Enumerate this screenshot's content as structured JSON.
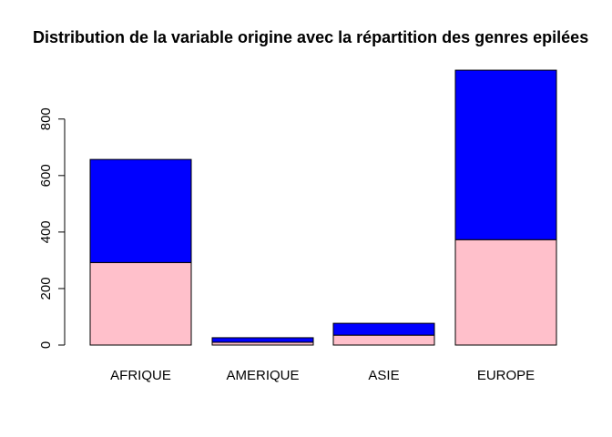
{
  "chart_data": {
    "type": "bar",
    "stacked": true,
    "title": "Distribution de la variable origine avec la répartition des genres epilées",
    "xlabel": "",
    "ylabel": "",
    "categories": [
      "AFRIQUE",
      "AMERIQUE",
      "ASIE",
      "EUROPE"
    ],
    "series": [
      {
        "color": "#ffc0cb",
        "values": [
          292,
          10,
          35,
          373
        ]
      },
      {
        "color": "#0000ff",
        "values": [
          365,
          16,
          42,
          600
        ]
      }
    ],
    "ylim": [
      0,
      1000
    ],
    "yticks": [
      0,
      200,
      400,
      600,
      800
    ],
    "grid": false,
    "legend": "none"
  }
}
